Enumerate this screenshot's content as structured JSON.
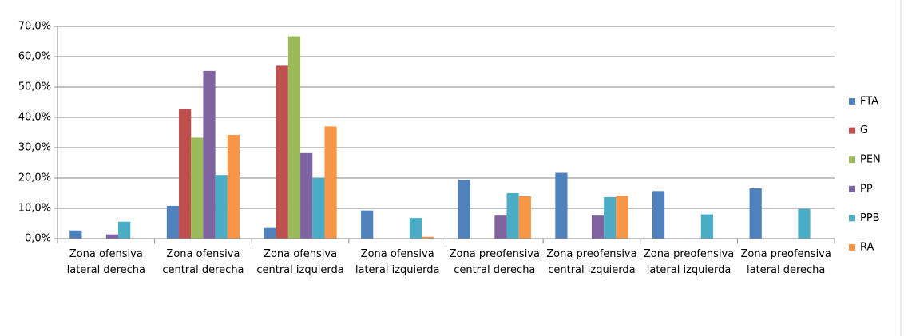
{
  "chart_data": {
    "type": "bar",
    "categories": [
      "Zona ofensiva lateral derecha",
      "Zona ofensiva central derecha",
      "Zona ofensiva central izquierda",
      "Zona ofensiva lateral izquierda",
      "Zona preofensiva central derecha",
      "Zona preofensiva central izquierda",
      "Zona preofensiva lateral izquierda",
      "Zona preofensiva lateral derecha"
    ],
    "series": [
      {
        "name": "FTA",
        "color": "#4f81bd",
        "values": [
          2.7,
          10.8,
          3.5,
          9.3,
          19.4,
          21.7,
          15.7,
          16.6
        ]
      },
      {
        "name": "G",
        "color": "#c0504d",
        "values": [
          0,
          42.8,
          57,
          0,
          0,
          0,
          0,
          0
        ]
      },
      {
        "name": "PEN",
        "color": "#9bbb59",
        "values": [
          0,
          33.3,
          66.7,
          0,
          0,
          0,
          0,
          0
        ]
      },
      {
        "name": "PP",
        "color": "#8064a2",
        "values": [
          1.4,
          55.3,
          28.2,
          0,
          7.6,
          7.6,
          0,
          0
        ]
      },
      {
        "name": "PPB",
        "color": "#4bacc6",
        "values": [
          5.6,
          21,
          20,
          6.8,
          15,
          13.7,
          8,
          9.8
        ]
      },
      {
        "name": "RA",
        "color": "#f79646",
        "values": [
          0,
          34.2,
          37,
          0.6,
          14,
          14.1,
          0,
          0
        ]
      }
    ],
    "ylim": [
      0,
      70
    ],
    "yticks": [
      {
        "value": 0,
        "label": "0,0%"
      },
      {
        "value": 10,
        "label": "10,0%"
      },
      {
        "value": 20,
        "label": "20,0%"
      },
      {
        "value": 30,
        "label": "30,0%"
      },
      {
        "value": 40,
        "label": "40,0%"
      },
      {
        "value": 50,
        "label": "50,0%"
      },
      {
        "value": 60,
        "label": "60,0%"
      },
      {
        "value": 70,
        "label": "70,0%"
      }
    ],
    "grid": true,
    "legend": "right"
  }
}
